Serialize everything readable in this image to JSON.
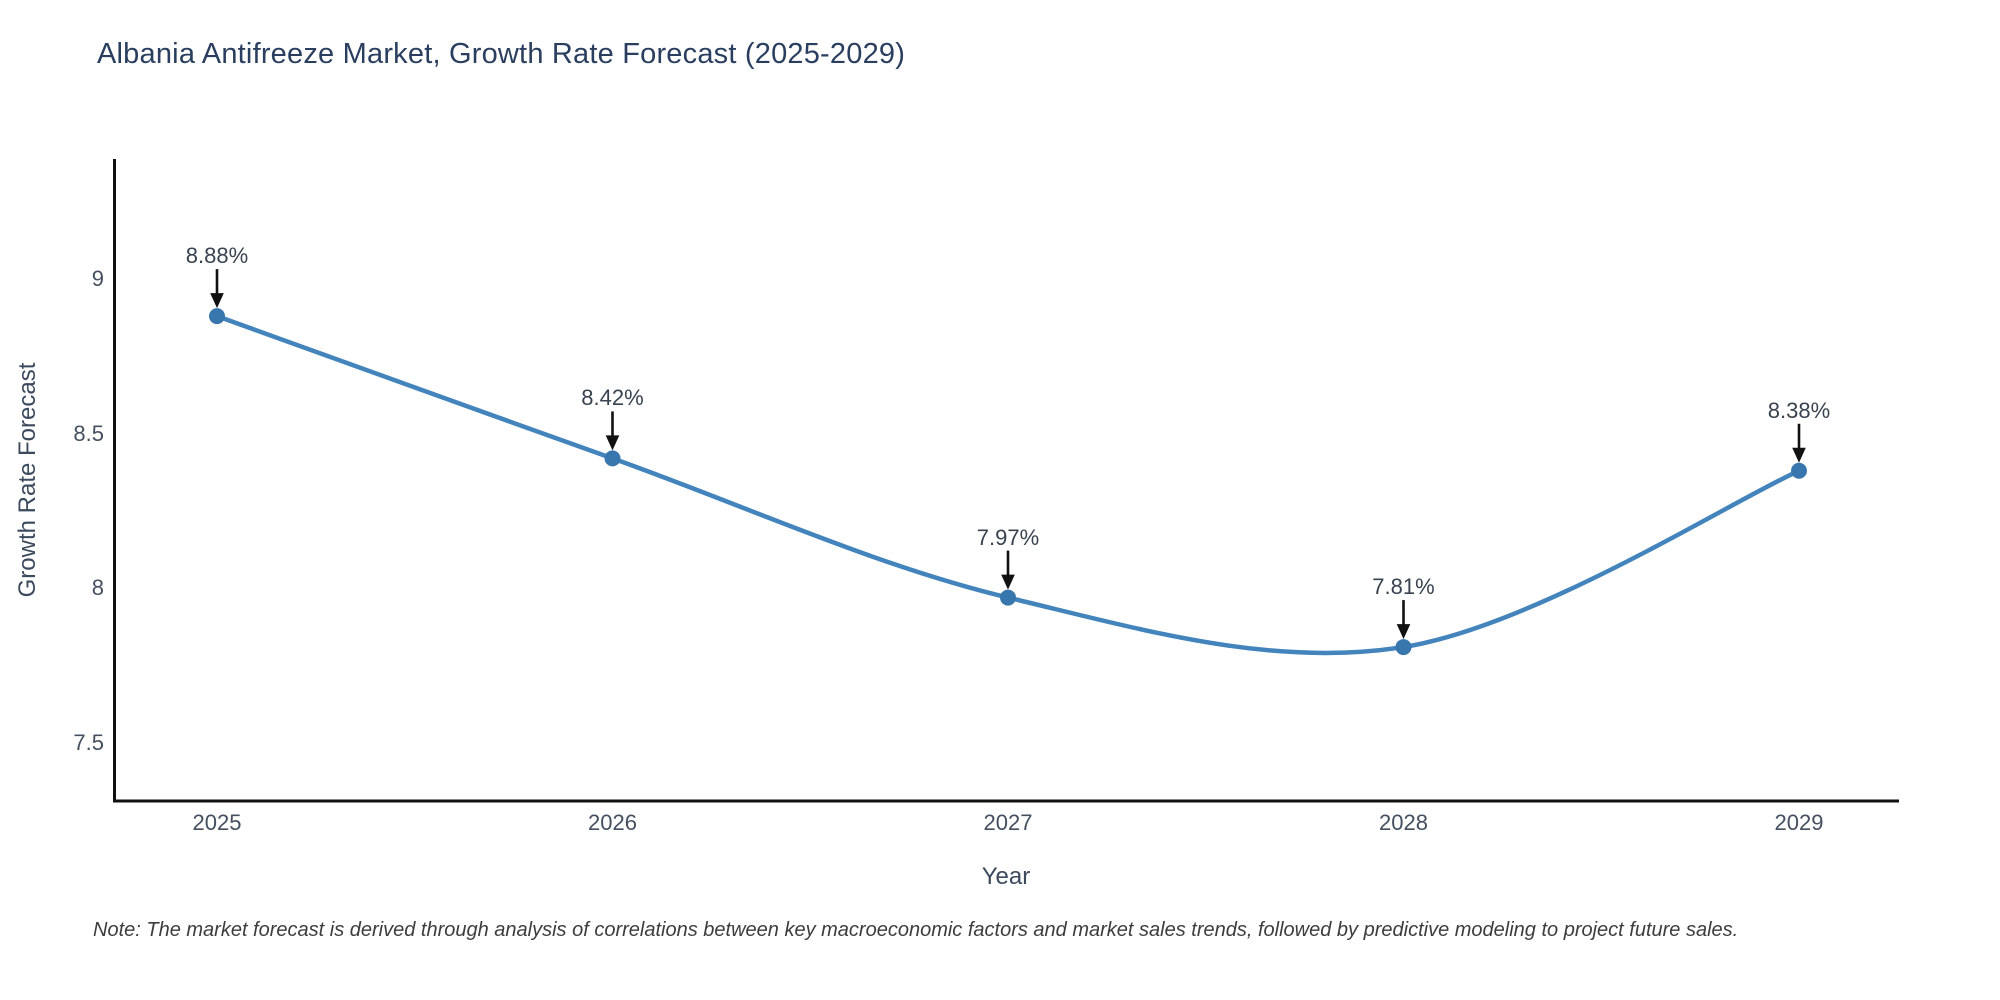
{
  "chart_data": {
    "type": "line",
    "title": "Albania Antifreeze Market, Growth Rate Forecast (2025-2029)",
    "xlabel": "Year",
    "ylabel": "Growth Rate Forecast",
    "x": [
      2025,
      2026,
      2027,
      2028,
      2029
    ],
    "y": [
      8.88,
      8.42,
      7.97,
      7.81,
      8.38
    ],
    "point_labels": [
      "8.88%",
      "8.42%",
      "7.97%",
      "7.81%",
      "8.38%"
    ],
    "xtick_labels": [
      "2025",
      "2026",
      "2027",
      "2028",
      "2029"
    ],
    "xtick_values": [
      2025,
      2026,
      2027,
      2028,
      2029
    ],
    "ytick_labels": [
      "9",
      "8.5",
      "8",
      "7.5"
    ],
    "ytick_values": [
      9,
      8.5,
      8,
      7.5
    ],
    "xlim": [
      2024.74,
      2029.25
    ],
    "ylim": [
      7.31,
      9.39
    ],
    "grid": false,
    "legend": false,
    "line_shape": "spline",
    "colors": {
      "line": "#4384bc",
      "marker": "#3877ae",
      "axis": "#111111",
      "annotation_arrow": "#111111"
    },
    "note": "Note: The market forecast is derived through analysis of correlations between key macroeconomic factors and market sales trends, followed by predictive modeling to project future sales."
  }
}
